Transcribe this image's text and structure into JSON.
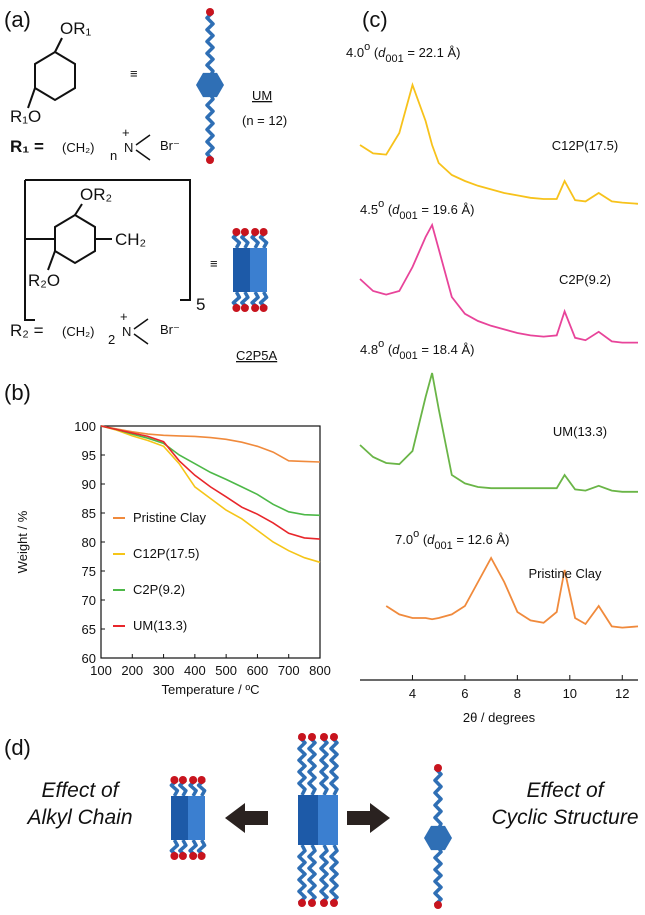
{
  "panel_a": {
    "label": "(a)",
    "equiv": "≡",
    "um": {
      "or1": "OR₁",
      "r1o": "R₁O",
      "r1_def": "R₁ =",
      "chain": "(CH₂)",
      "n": "n",
      "amine": "N",
      "plus": "+",
      "br": "Br⁻",
      "name": "UM",
      "n_value": "(n = 12)"
    },
    "c2p": {
      "or2": "OR₂",
      "ch2": "CH₂",
      "r2o": "R₂O",
      "repeat": "5",
      "r2_def": "R₂ =",
      "chain": "(CH₂)",
      "n": "2",
      "amine": "N",
      "plus": "+",
      "br": "Br⁻",
      "name": "C2P5A"
    }
  },
  "chart_data": [
    {
      "type": "line",
      "panel_label": "(b)",
      "x_label": "Temperature / ºC",
      "y_label": "Weight / %",
      "x": [
        100,
        150,
        200,
        250,
        300,
        350,
        400,
        450,
        500,
        550,
        600,
        650,
        700,
        750,
        800
      ],
      "xlim": [
        100,
        800
      ],
      "xticks": [
        100,
        200,
        300,
        400,
        500,
        600,
        700,
        800
      ],
      "ylim": [
        60,
        100
      ],
      "yticks": [
        60,
        65,
        70,
        75,
        80,
        85,
        90,
        95,
        100
      ],
      "legend": "lower left",
      "series": [
        {
          "name": "Pristine Clay",
          "color": "#f08a3c",
          "values": [
            100,
            99.5,
            99,
            98.6,
            98.4,
            98.3,
            98.2,
            98,
            97.7,
            97.2,
            96.5,
            95.5,
            94,
            93.9,
            93.8
          ]
        },
        {
          "name": "C12P(17.5)",
          "color": "#f5c518",
          "values": [
            100,
            99.3,
            98.3,
            97.5,
            96.5,
            93.5,
            89.5,
            87.5,
            85.5,
            84,
            82,
            80,
            78.5,
            77.3,
            76.5
          ]
        },
        {
          "name": "C2P(9.2)",
          "color": "#4db848",
          "values": [
            100,
            99.4,
            98.6,
            97.9,
            97,
            95,
            93.5,
            92,
            90.8,
            89.5,
            88.2,
            86.5,
            85.2,
            84.7,
            84.6
          ]
        },
        {
          "name": "UM(13.3)",
          "color": "#e8262b",
          "values": [
            100,
            99.4,
            98.8,
            98.2,
            97.3,
            94,
            91.5,
            89.5,
            87.8,
            86,
            84.8,
            83.3,
            81.5,
            80.7,
            80.5
          ]
        }
      ]
    },
    {
      "type": "stacked-profile",
      "panel_label": "(c)",
      "x_label": "2θ / degrees",
      "x": [
        2,
        2.5,
        3,
        3.5,
        4,
        4.5,
        4.75,
        5,
        5.5,
        6,
        6.5,
        7,
        7.5,
        8,
        8.5,
        9,
        9.5,
        9.8,
        10.2,
        10.6,
        11.1,
        11.6,
        12,
        12.6
      ],
      "xlim": [
        2,
        12.6
      ],
      "xticks": [
        4,
        6,
        8,
        10,
        12
      ],
      "series": [
        {
          "name": "C12P(17.5)",
          "color": "#f7c21b",
          "values": [
            5,
            4.3,
            4.2,
            6,
            10,
            7,
            5,
            3.5,
            2.5,
            2,
            1.6,
            1.3,
            1,
            0.8,
            0.6,
            0.5,
            0.5,
            2,
            0.4,
            0.3,
            1,
            0.3,
            0.2,
            0.1
          ],
          "annotation": {
            "angle": "4.0",
            "deg": "o",
            "open": " (",
            "d": "d",
            "sub": "001",
            "rest": " = 22.1 Å)"
          }
        },
        {
          "name": "C2P(9.2)",
          "color": "#e8449a",
          "values": [
            5.5,
            4.5,
            4.2,
            4.5,
            6.5,
            9,
            10,
            8,
            4,
            2.6,
            2,
            1.6,
            1.3,
            1,
            0.8,
            0.7,
            0.8,
            2.8,
            0.6,
            0.4,
            1.1,
            0.3,
            0.2,
            0.2
          ],
          "annotation": {
            "angle": "4.5",
            "deg": "o",
            "open": " (",
            "d": "d",
            "sub": "001",
            "rest": " = 19.6 Å)"
          }
        },
        {
          "name": "UM(13.3)",
          "color": "#6ab547",
          "values": [
            4,
            3,
            2.5,
            2.4,
            3.5,
            8,
            10,
            7,
            1.5,
            0.8,
            0.5,
            0.4,
            0.4,
            0.4,
            0.4,
            0.4,
            0.4,
            1.5,
            0.3,
            0.2,
            0.6,
            0.2,
            0.1,
            0.1
          ],
          "annotation": {
            "angle": "4.8",
            "deg": "o",
            "open": " (",
            "d": "d",
            "sub": "001",
            "rest": " = 18.4 Å)"
          }
        },
        {
          "name": "Pristine Clay",
          "color": "#f08a3c",
          "values": [
            null,
            null,
            2,
            1.3,
            1,
            1,
            0.9,
            1,
            1.3,
            2,
            4,
            6,
            4,
            1.5,
            0.8,
            0.6,
            1.5,
            5,
            1,
            0.5,
            2,
            0.3,
            0.2,
            0.3
          ],
          "annotation": {
            "angle": "7.0",
            "deg": "o",
            "open": " (",
            "d": "d",
            "sub": "001",
            "rest": " = 12.6 Å)"
          }
        }
      ]
    }
  ],
  "panel_d": {
    "label": "(d)",
    "left_line1": "Effect of",
    "left_line2": "Alkyl Chain",
    "right_line1": "Effect of",
    "right_line2": "Cyclic Structure"
  }
}
